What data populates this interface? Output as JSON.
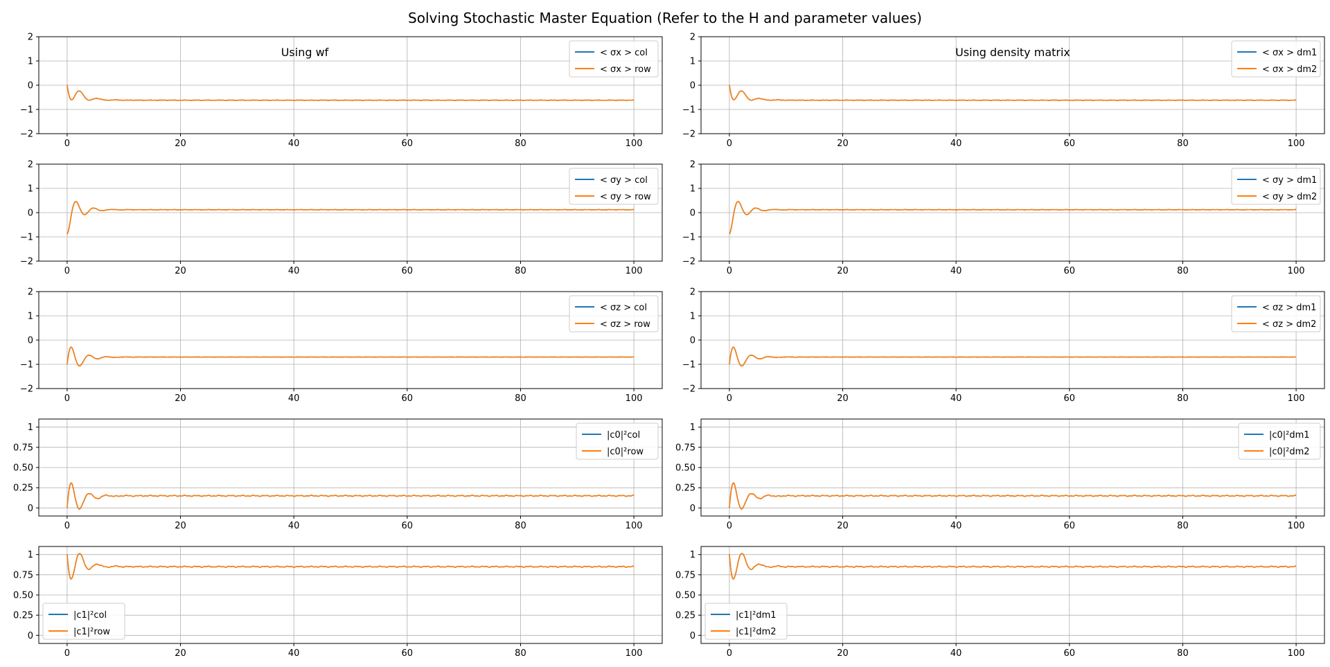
{
  "title": "Solving Stochastic Master Equation (Refer to the H and parameter values)",
  "colors": {
    "series_1": "#1f77b4",
    "series_2": "#ff7f0e",
    "grid": "#b0b0b0"
  },
  "chart_data": [
    {
      "type": "line",
      "column": "left",
      "row": 0,
      "annotation": "Using wf",
      "legend_position": "top-right",
      "xlim": [
        -5,
        105
      ],
      "ylim": [
        -2,
        2
      ],
      "xticks": [
        0,
        20,
        40,
        60,
        80,
        100
      ],
      "yticks": [
        -2,
        -1,
        0,
        1,
        2
      ],
      "grid": true,
      "dynamics": {
        "start": 0.0,
        "steady": -0.62,
        "amplitude": 0.6,
        "decay": 0.52,
        "omega": 2.0,
        "phase": 0.0
      },
      "series": [
        {
          "name": "< σx >  col",
          "color": "#1f77b4"
        },
        {
          "name": "< σx >  row",
          "color": "#ff7f0e"
        }
      ]
    },
    {
      "type": "line",
      "column": "right",
      "row": 0,
      "annotation": "Using density matrix",
      "legend_position": "top-right",
      "xlim": [
        -5,
        105
      ],
      "ylim": [
        -2,
        2
      ],
      "xticks": [
        0,
        20,
        40,
        60,
        80,
        100
      ],
      "yticks": [
        -2,
        -1,
        0,
        1,
        2
      ],
      "grid": true,
      "dynamics": {
        "start": 0.0,
        "steady": -0.62,
        "amplitude": 0.6,
        "decay": 0.52,
        "omega": 2.0,
        "phase": 0.0
      },
      "series": [
        {
          "name": "< σx >  dm1",
          "color": "#1f77b4"
        },
        {
          "name": "< σx >  dm2",
          "color": "#ff7f0e"
        }
      ]
    },
    {
      "type": "line",
      "column": "left",
      "row": 1,
      "annotation": "",
      "legend_position": "top-right",
      "xlim": [
        -5,
        105
      ],
      "ylim": [
        -2,
        2
      ],
      "xticks": [
        0,
        20,
        40,
        60,
        80,
        100
      ],
      "yticks": [
        -2,
        -1,
        0,
        1,
        2
      ],
      "grid": true,
      "dynamics": {
        "start": 0.0,
        "steady": 0.12,
        "amplitude": 0.9,
        "decay": 0.52,
        "omega": 2.0,
        "phase": -1.7
      },
      "series": [
        {
          "name": "< σy >  col",
          "color": "#1f77b4"
        },
        {
          "name": "< σy >  row",
          "color": "#ff7f0e"
        }
      ]
    },
    {
      "type": "line",
      "column": "right",
      "row": 1,
      "annotation": "",
      "legend_position": "top-right",
      "xlim": [
        -5,
        105
      ],
      "ylim": [
        -2,
        2
      ],
      "xticks": [
        0,
        20,
        40,
        60,
        80,
        100
      ],
      "yticks": [
        -2,
        -1,
        0,
        1,
        2
      ],
      "grid": true,
      "dynamics": {
        "start": 0.0,
        "steady": 0.12,
        "amplitude": 0.9,
        "decay": 0.52,
        "omega": 2.0,
        "phase": -1.7
      },
      "series": [
        {
          "name": "< σy >  dm1",
          "color": "#1f77b4"
        },
        {
          "name": "< σy >  dm2",
          "color": "#ff7f0e"
        }
      ]
    },
    {
      "type": "line",
      "column": "left",
      "row": 2,
      "annotation": "",
      "legend_position": "top-right",
      "xlim": [
        -5,
        105
      ],
      "ylim": [
        -2,
        2
      ],
      "xticks": [
        0,
        20,
        40,
        60,
        80,
        100
      ],
      "yticks": [
        -2,
        -1,
        0,
        1,
        2
      ],
      "grid": true,
      "dynamics": {
        "start": -1.0,
        "steady": -0.7,
        "amplitude": 0.9,
        "decay": 0.52,
        "omega": 2.0,
        "phase": 0.0
      },
      "series": [
        {
          "name": "< σz > col",
          "color": "#1f77b4"
        },
        {
          "name": "< σz > row",
          "color": "#ff7f0e"
        }
      ]
    },
    {
      "type": "line",
      "column": "right",
      "row": 2,
      "annotation": "",
      "legend_position": "top-right",
      "xlim": [
        -5,
        105
      ],
      "ylim": [
        -2,
        2
      ],
      "xticks": [
        0,
        20,
        40,
        60,
        80,
        100
      ],
      "yticks": [
        -2,
        -1,
        0,
        1,
        2
      ],
      "grid": true,
      "dynamics": {
        "start": -1.0,
        "steady": -0.7,
        "amplitude": 0.9,
        "decay": 0.52,
        "omega": 2.0,
        "phase": 0.0
      },
      "series": [
        {
          "name": "< σz > dm1",
          "color": "#1f77b4"
        },
        {
          "name": "< σz > dm2",
          "color": "#ff7f0e"
        }
      ]
    },
    {
      "type": "line",
      "column": "left",
      "row": 3,
      "annotation": "",
      "legend_position": "top-right",
      "xlim": [
        -5,
        105
      ],
      "ylim": [
        -0.1,
        1.1
      ],
      "xticks": [
        0,
        20,
        40,
        60,
        80,
        100
      ],
      "yticks": [
        0.0,
        0.25,
        0.5,
        0.75,
        1.0
      ],
      "grid": true,
      "dynamics": {
        "start": 0.0,
        "steady": 0.15,
        "amplitude": 0.38,
        "decay": 0.52,
        "omega": 2.0,
        "phase": 0.0
      },
      "series": [
        {
          "name": "|c0|²col",
          "color": "#1f77b4"
        },
        {
          "name": "|c0|²row",
          "color": "#ff7f0e"
        }
      ]
    },
    {
      "type": "line",
      "column": "right",
      "row": 3,
      "annotation": "",
      "legend_position": "top-right",
      "xlim": [
        -5,
        105
      ],
      "ylim": [
        -0.1,
        1.1
      ],
      "xticks": [
        0,
        20,
        40,
        60,
        80,
        100
      ],
      "yticks": [
        0.0,
        0.25,
        0.5,
        0.75,
        1.0
      ],
      "grid": true,
      "dynamics": {
        "start": 0.0,
        "steady": 0.15,
        "amplitude": 0.38,
        "decay": 0.52,
        "omega": 2.0,
        "phase": 0.0
      },
      "series": [
        {
          "name": "|c0|²dm1",
          "color": "#1f77b4"
        },
        {
          "name": "|c0|²dm2",
          "color": "#ff7f0e"
        }
      ]
    },
    {
      "type": "line",
      "column": "left",
      "row": 4,
      "annotation": "",
      "legend_position": "bottom-left",
      "xlim": [
        -5,
        105
      ],
      "ylim": [
        -0.1,
        1.1
      ],
      "xticks": [
        0,
        20,
        40,
        60,
        80,
        100
      ],
      "yticks": [
        0.0,
        0.25,
        0.5,
        0.75,
        1.0
      ],
      "grid": true,
      "dynamics": {
        "start": 1.0,
        "steady": 0.85,
        "amplitude": 0.38,
        "decay": 0.52,
        "omega": 2.0,
        "phase": 0.0
      },
      "series": [
        {
          "name": "|c1|²col",
          "color": "#1f77b4"
        },
        {
          "name": "|c1|²row",
          "color": "#ff7f0e"
        }
      ]
    },
    {
      "type": "line",
      "column": "right",
      "row": 4,
      "annotation": "",
      "legend_position": "bottom-left",
      "xlim": [
        -5,
        105
      ],
      "ylim": [
        -0.1,
        1.1
      ],
      "xticks": [
        0,
        20,
        40,
        60,
        80,
        100
      ],
      "yticks": [
        0.0,
        0.25,
        0.5,
        0.75,
        1.0
      ],
      "grid": true,
      "dynamics": {
        "start": 1.0,
        "steady": 0.85,
        "amplitude": 0.38,
        "decay": 0.52,
        "omega": 2.0,
        "phase": 0.0
      },
      "series": [
        {
          "name": "|c1|²dm1",
          "color": "#1f77b4"
        },
        {
          "name": "|c1|²dm2",
          "color": "#ff7f0e"
        }
      ]
    }
  ]
}
